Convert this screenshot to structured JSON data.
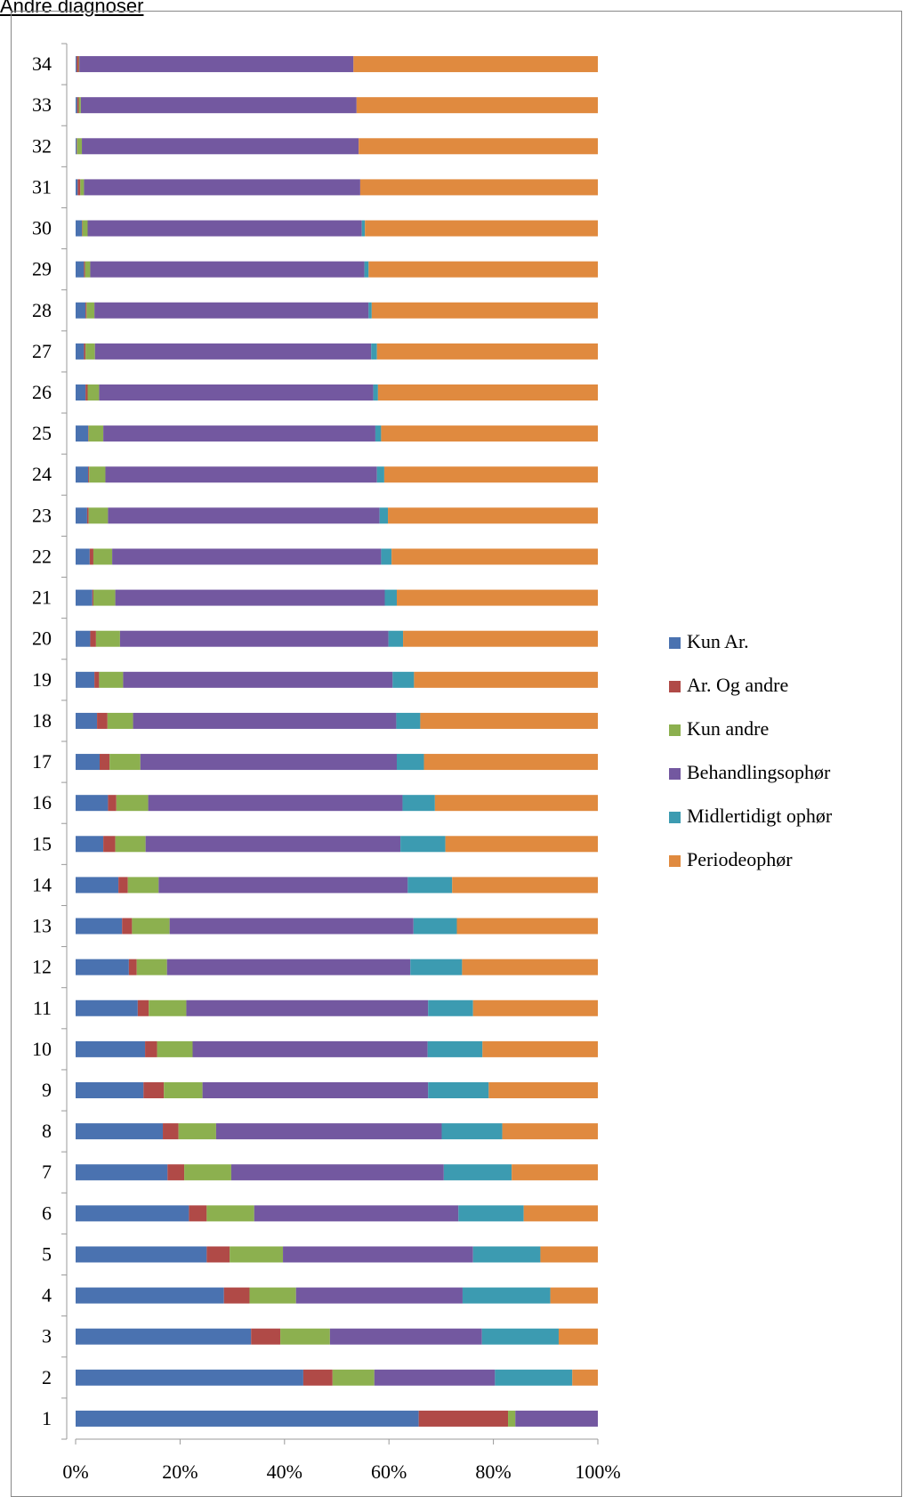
{
  "header": {
    "link_text": "Andre diagnoser"
  },
  "chart_data": {
    "type": "bar",
    "orientation": "horizontal",
    "stacked": "percent",
    "categories": [
      "1",
      "2",
      "3",
      "4",
      "5",
      "6",
      "7",
      "8",
      "9",
      "10",
      "11",
      "12",
      "13",
      "14",
      "15",
      "16",
      "17",
      "18",
      "19",
      "20",
      "21",
      "22",
      "23",
      "24",
      "25",
      "26",
      "27",
      "28",
      "29",
      "30",
      "31",
      "32",
      "33",
      "34"
    ],
    "x_ticks": [
      "0%",
      "20%",
      "40%",
      "60%",
      "80%",
      "100%"
    ],
    "xlim": [
      0,
      100
    ],
    "legend_position": "right",
    "grid": false,
    "series": [
      {
        "name": "Kun Ar.",
        "color": "#4a72b0",
        "values": [
          65.7,
          43.6,
          33.6,
          28.4,
          25.1,
          21.7,
          17.6,
          16.7,
          13.0,
          13.3,
          11.9,
          10.2,
          8.9,
          8.2,
          5.3,
          6.2,
          4.6,
          4.1,
          3.6,
          2.8,
          3.2,
          2.7,
          2.2,
          2.4,
          2.4,
          1.9,
          1.6,
          1.9,
          1.6,
          1.2,
          0.4,
          0.2,
          0.3,
          0.2
        ]
      },
      {
        "name": "Ar. Og andre",
        "color": "#b04a47",
        "values": [
          17.1,
          5.6,
          5.6,
          4.9,
          4.4,
          3.4,
          3.2,
          3.0,
          3.9,
          2.3,
          2.1,
          1.5,
          1.9,
          1.8,
          2.3,
          1.6,
          1.9,
          2.0,
          0.9,
          1.1,
          0.2,
          0.7,
          0.3,
          0.2,
          0.1,
          0.4,
          0.3,
          0.2,
          0.2,
          0.1,
          0.5,
          0.1,
          0.3,
          0.4
        ]
      },
      {
        "name": "Kun andre",
        "color": "#8cb04f",
        "values": [
          1.4,
          8.0,
          9.5,
          8.9,
          10.2,
          9.1,
          9.0,
          7.2,
          7.4,
          6.8,
          7.2,
          5.8,
          7.2,
          5.9,
          5.8,
          6.1,
          5.9,
          4.9,
          4.6,
          4.6,
          4.2,
          3.6,
          3.7,
          3.1,
          2.8,
          2.2,
          1.8,
          1.5,
          1.0,
          1.0,
          0.7,
          0.9,
          0.4,
          0.1
        ]
      },
      {
        "name": "Behandlingsophør",
        "color": "#7358a0",
        "values": [
          15.8,
          23.1,
          29.1,
          31.9,
          36.4,
          39.1,
          40.7,
          43.2,
          43.2,
          45.0,
          46.3,
          46.6,
          46.7,
          47.7,
          48.8,
          48.7,
          49.1,
          50.4,
          51.6,
          51.4,
          51.6,
          51.5,
          52.0,
          52.0,
          52.1,
          52.5,
          52.9,
          52.5,
          52.5,
          52.5,
          52.9,
          53.0,
          52.8,
          52.5
        ]
      },
      {
        "name": "Midlertidigt ophør",
        "color": "#3c9bb1",
        "values": [
          0,
          14.8,
          14.7,
          16.8,
          12.9,
          12.5,
          13.0,
          11.6,
          11.6,
          10.5,
          8.6,
          9.9,
          8.3,
          8.5,
          8.6,
          6.2,
          5.2,
          4.6,
          4.1,
          2.8,
          2.3,
          2.0,
          1.6,
          1.4,
          1.1,
          0.9,
          1.1,
          0.6,
          0.8,
          0.6,
          0,
          0,
          0,
          0
        ]
      },
      {
        "name": "Periodeophør",
        "color": "#e08a3f",
        "values": [
          0,
          4.9,
          7.5,
          9.1,
          11.0,
          14.2,
          16.5,
          18.3,
          20.9,
          22.1,
          23.9,
          26.0,
          27.0,
          27.9,
          29.2,
          31.2,
          33.3,
          34.0,
          35.2,
          37.3,
          38.5,
          39.5,
          40.2,
          40.9,
          41.5,
          42.1,
          42.3,
          43.3,
          43.9,
          44.6,
          45.5,
          45.8,
          46.2,
          46.8
        ]
      }
    ]
  }
}
